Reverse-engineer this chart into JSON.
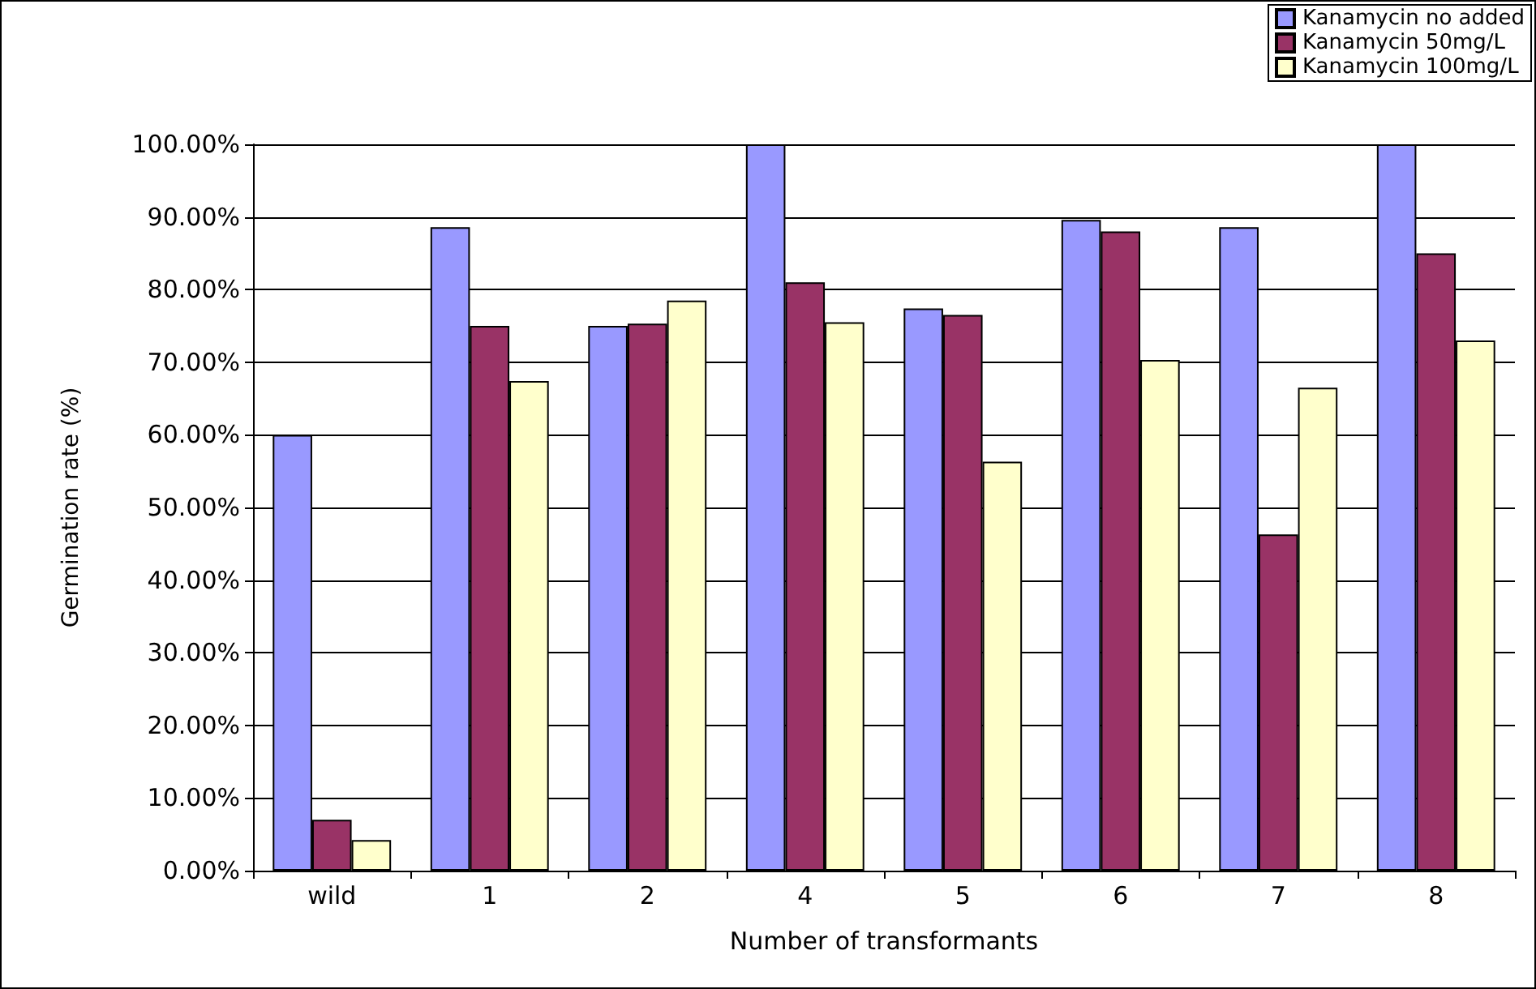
{
  "chart_data": {
    "type": "bar",
    "xlabel": "Number of transformants",
    "ylabel": "Germination rate (%)",
    "categories": [
      "wild",
      "1",
      "2",
      "4",
      "5",
      "6",
      "7",
      "8"
    ],
    "series": [
      {
        "name": "Kanamycin no added",
        "color": "#9999ff",
        "values": [
          60,
          88.6,
          75,
          100,
          77.4,
          89.6,
          88.6,
          100
        ]
      },
      {
        "name": "Kanamycin 50mg/L",
        "color": "#993366",
        "values": [
          7,
          75,
          75.3,
          81,
          76.5,
          88,
          46.3,
          85
        ]
      },
      {
        "name": "Kanamycin 100mg/L",
        "color": "#ffffcc",
        "values": [
          4.2,
          67.4,
          78.5,
          75.5,
          56.3,
          70.3,
          66.5,
          73
        ]
      }
    ],
    "ylim": [
      0,
      100
    ],
    "yticks": [
      {
        "value": 0,
        "label": "0.00%"
      },
      {
        "value": 10,
        "label": "10.00%"
      },
      {
        "value": 20,
        "label": "20.00%"
      },
      {
        "value": 30,
        "label": "30.00%"
      },
      {
        "value": 40,
        "label": "40.00%"
      },
      {
        "value": 50,
        "label": "50.00%"
      },
      {
        "value": 60,
        "label": "60.00%"
      },
      {
        "value": 70,
        "label": "70.00%"
      },
      {
        "value": 80,
        "label": "80.00%"
      },
      {
        "value": 90,
        "label": "90.00%"
      },
      {
        "value": 100,
        "label": "100.00%"
      }
    ],
    "grid": "y",
    "legend": "top right"
  }
}
